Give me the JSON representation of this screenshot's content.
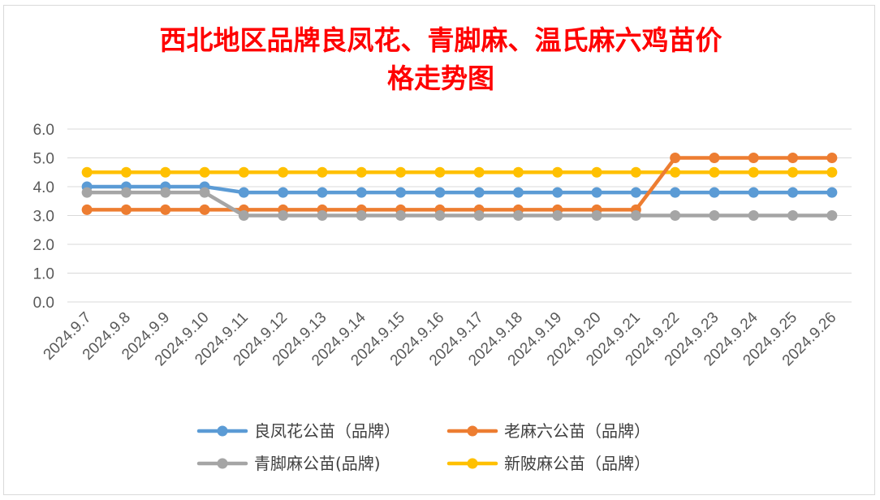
{
  "chart_data": {
    "type": "line",
    "title": "西北地区品牌良凤花、青脚麻、温氏麻六鸡苗价格走势图",
    "title_lines": [
      "西北地区品牌良凤花、青脚麻、温氏麻六鸡苗价",
      "格走势图"
    ],
    "xlabel": "",
    "ylabel": "",
    "ylim": [
      0,
      6
    ],
    "yticks": [
      "0.0",
      "1.0",
      "2.0",
      "3.0",
      "4.0",
      "5.0",
      "6.0"
    ],
    "grid": true,
    "legend_position": "bottom",
    "categories": [
      "2024.9.7",
      "2024.9.8",
      "2024.9.9",
      "2024.9.10",
      "2024.9.11",
      "2024.9.12",
      "2024.9.13",
      "2024.9.14",
      "2024.9.15",
      "2024.9.16",
      "2024.9.17",
      "2024.9.18",
      "2024.9.19",
      "2024.9.20",
      "2024.9.21",
      "2024.9.22",
      "2024.9.23",
      "2024.9.24",
      "2024.9.25",
      "2024.9.26"
    ],
    "series": [
      {
        "name": "良凤花公苗（品牌）",
        "color": "#5b9bd5",
        "values": [
          4.0,
          4.0,
          4.0,
          4.0,
          3.8,
          3.8,
          3.8,
          3.8,
          3.8,
          3.8,
          3.8,
          3.8,
          3.8,
          3.8,
          3.8,
          3.8,
          3.8,
          3.8,
          3.8,
          3.8
        ]
      },
      {
        "name": "老麻六公苗（品牌）",
        "color": "#ed7d31",
        "values": [
          3.2,
          3.2,
          3.2,
          3.2,
          3.2,
          3.2,
          3.2,
          3.2,
          3.2,
          3.2,
          3.2,
          3.2,
          3.2,
          3.2,
          3.2,
          5.0,
          5.0,
          5.0,
          5.0,
          5.0
        ]
      },
      {
        "name": "青脚麻公苗(品牌)",
        "color": "#a5a5a5",
        "values": [
          3.8,
          3.8,
          3.8,
          3.8,
          3.0,
          3.0,
          3.0,
          3.0,
          3.0,
          3.0,
          3.0,
          3.0,
          3.0,
          3.0,
          3.0,
          3.0,
          3.0,
          3.0,
          3.0,
          3.0
        ]
      },
      {
        "name": "新陂麻公苗（品牌）",
        "color": "#ffc000",
        "values": [
          4.5,
          4.5,
          4.5,
          4.5,
          4.5,
          4.5,
          4.5,
          4.5,
          4.5,
          4.5,
          4.5,
          4.5,
          4.5,
          4.5,
          4.5,
          4.5,
          4.5,
          4.5,
          4.5,
          4.5
        ]
      }
    ],
    "series_draw_order": [
      3,
      0,
      1,
      2
    ]
  }
}
